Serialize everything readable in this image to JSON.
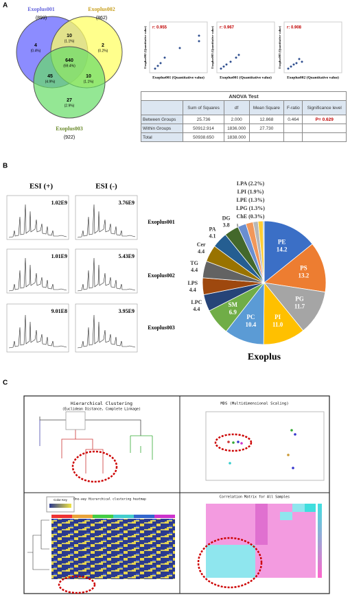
{
  "panel_a": {
    "label": "A",
    "venn": {
      "sets": [
        {
          "name": "Exoplus001",
          "count": "(899)"
        },
        {
          "name": "Exoplus002",
          "count": "(862)"
        },
        {
          "name": "Exoplus003",
          "count": "(922)"
        }
      ],
      "regions": [
        {
          "count": "4",
          "percent": "(0.4%)"
        },
        {
          "count": "10",
          "percent": "(1.1%)"
        },
        {
          "count": "2",
          "percent": "(0.2%)"
        },
        {
          "count": "640",
          "percent": "(69.4%)"
        },
        {
          "count": "45",
          "percent": "(4.9%)"
        },
        {
          "count": "10",
          "percent": "(1.1%)"
        },
        {
          "count": "27",
          "percent": "(2.9%)"
        }
      ]
    },
    "scatter": [
      {
        "r": "r: 0.955",
        "x_label": "Exoplus001 (Quantitative value)",
        "y_label": "Exoplus002 (Quantitative value)"
      },
      {
        "r": "r: 0.967",
        "x_label": "Exoplus001 (Quantitative value)",
        "y_label": "Exoplus003 (Quantitative value)"
      },
      {
        "r": "r: 0.908",
        "x_label": "Exoplus002 (Quantitative value)",
        "y_label": "Exoplus003 (Quantitative value)"
      }
    ],
    "anova": {
      "title": "ANOVA Test",
      "columns": [
        "Sum of Squares",
        "df",
        "Mean Square",
        "F-ratio",
        "Significance level"
      ],
      "rows": [
        [
          "Between Groups",
          "25.736",
          "2.000",
          "12.868",
          "0.464",
          "P= 0.629"
        ],
        [
          "Within Groups",
          "50912.914",
          "1836.000",
          "27.730"
        ],
        [
          "Total",
          "50938.650",
          "1838.000"
        ]
      ]
    }
  },
  "panel_b": {
    "label": "B",
    "modes": [
      "ESI (+)",
      "ESI (-)"
    ],
    "samples": [
      "Exoplus001",
      "Exoplus002",
      "Exoplus003"
    ],
    "intensities": [
      [
        "1.02E9",
        "3.76E9"
      ],
      [
        "1.01E9",
        "5.43E9"
      ],
      [
        "9.01E8",
        "3.95E9"
      ]
    ],
    "pie": {
      "type": "pie",
      "title": "Exoplus",
      "categories": [
        "PE",
        "PS",
        "PG",
        "PI",
        "PC",
        "SM",
        "LPC",
        "LPS",
        "TG",
        "Cer",
        "PA",
        "DG",
        "LPA",
        "LPI",
        "LPE",
        "LPG",
        "ChE"
      ],
      "values": [
        14.2,
        13.2,
        11.7,
        11.0,
        10.4,
        6.9,
        4.4,
        4.4,
        4.4,
        4.4,
        4.1,
        3.8,
        2.2,
        1.9,
        1.3,
        1.3,
        0.3
      ],
      "value_labels": [
        "14.2",
        "13.2",
        "11.7",
        "11.0",
        "10.4",
        "6.9",
        "4.4",
        "4.4",
        "4.4",
        "4.4",
        "4.1",
        "3.8",
        "(2.2%)",
        "(1.9%)",
        "(1.3%)",
        "(1.3%)",
        "(0.3%)"
      ],
      "colors": [
        "#3b6fc6",
        "#ed7d31",
        "#a5a5a5",
        "#ffc000",
        "#5b9bd5",
        "#70ad47",
        "#264478",
        "#9e480e",
        "#636363",
        "#997300",
        "#255e91",
        "#43682b",
        "#698ed0",
        "#f1975a",
        "#b7b7b7",
        "#ffcd33",
        "#7cafdd"
      ]
    }
  },
  "panel_c": {
    "label": "C",
    "clustering_title": "Hierarchical Clustering",
    "clustering_subtitle": "(Euclidean Distance, Complete Linkage)",
    "mds_title": "MDS (Multidimensional Scaling)",
    "heatmap_key": "Color Key",
    "heatmap_title": "One-way Hierarchical clustering heatmap",
    "correlation_title": "Correlation Matrix for All Samples"
  }
}
